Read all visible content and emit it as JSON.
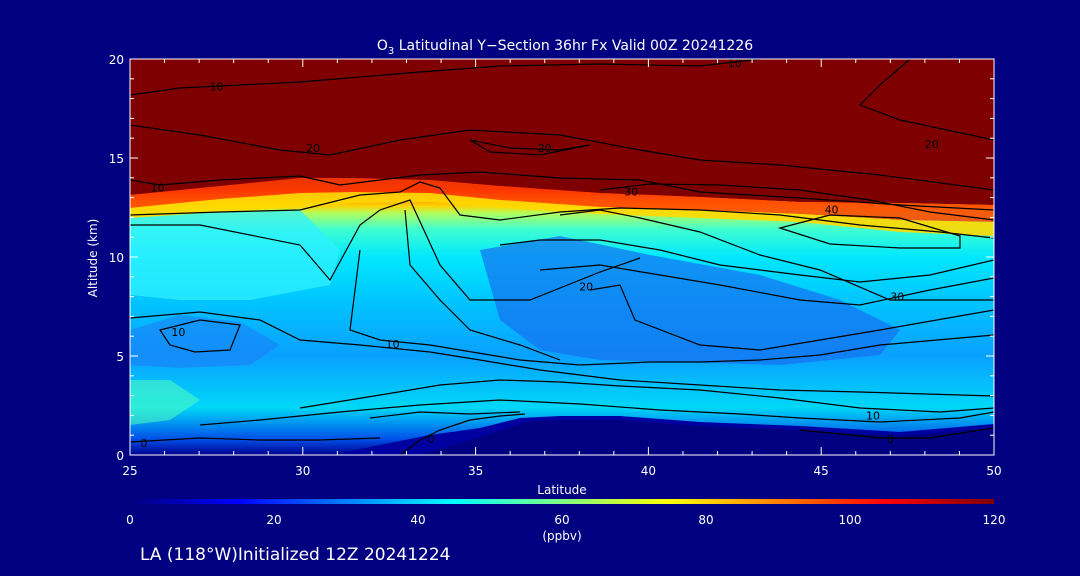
{
  "chart_data": {
    "type": "heatmap",
    "title_prefix": "O",
    "title_subscript": "3",
    "title_rest": " Latitudinal Y−Section 36hr  Fx Valid 00Z 20241226",
    "xlabel": "Latitude",
    "ylabel": "Altitude (km)",
    "xlim": [
      25,
      50
    ],
    "ylim": [
      0,
      20
    ],
    "x_ticks": [
      "25",
      "30",
      "35",
      "40",
      "45",
      "50"
    ],
    "y_ticks": [
      "0",
      "5",
      "10",
      "15",
      "20"
    ],
    "colorbar": {
      "range": [
        0,
        120
      ],
      "ticks": [
        "0",
        "20",
        "40",
        "60",
        "80",
        "100",
        "120"
      ],
      "unit": "(ppbv)",
      "colors": [
        "#00007f",
        "#0000ff",
        "#0080ff",
        "#00ffff",
        "#80ff80",
        "#ffff00",
        "#ff8000",
        "#ff0000",
        "#7f0000"
      ]
    },
    "contour_labels": [
      {
        "text": "10",
        "x": 27.5,
        "y": 18.6
      },
      {
        "text": "20",
        "x": 30.3,
        "y": 15.5
      },
      {
        "text": "10",
        "x": 25.8,
        "y": 13.5
      },
      {
        "text": "20",
        "x": 37.0,
        "y": 15.5
      },
      {
        "text": "30",
        "x": 39.5,
        "y": 13.3
      },
      {
        "text": "40",
        "x": 45.3,
        "y": 12.4
      },
      {
        "text": "20",
        "x": 48.2,
        "y": 15.7
      },
      {
        "text": "10",
        "x": 42.5,
        "y": 19.8
      },
      {
        "text": "20",
        "x": 38.2,
        "y": 8.5
      },
      {
        "text": "30",
        "x": 47.2,
        "y": 8.0
      },
      {
        "text": "10",
        "x": 26.4,
        "y": 6.2
      },
      {
        "text": "10",
        "x": 32.6,
        "y": 5.6
      },
      {
        "text": "10",
        "x": 46.5,
        "y": 2.0
      },
      {
        "text": "0",
        "x": 25.4,
        "y": 0.6
      },
      {
        "text": "0",
        "x": 33.7,
        "y": 0.8
      },
      {
        "text": "0",
        "x": 47.0,
        "y": 0.8
      }
    ],
    "footer": "LA (118°W)Initialized 12Z 20241224"
  }
}
